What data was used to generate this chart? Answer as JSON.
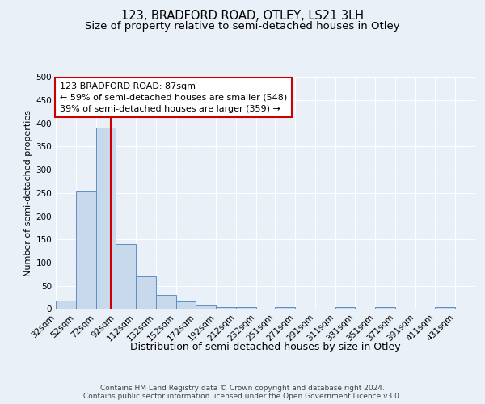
{
  "title": "123, BRADFORD ROAD, OTLEY, LS21 3LH",
  "subtitle": "Size of property relative to semi-detached houses in Otley",
  "xlabel": "Distribution of semi-detached houses by size in Otley",
  "ylabel": "Number of semi-detached properties",
  "footer_line1": "Contains HM Land Registry data © Crown copyright and database right 2024.",
  "footer_line2": "Contains public sector information licensed under the Open Government Licence v3.0.",
  "bar_edges": [
    32,
    52,
    72,
    92,
    112,
    132,
    152,
    172,
    192,
    212,
    232,
    251,
    271,
    291,
    311,
    331,
    351,
    371,
    391,
    411,
    431
  ],
  "bar_heights": [
    18,
    253,
    390,
    140,
    70,
    30,
    16,
    7,
    4,
    4,
    0,
    5,
    0,
    0,
    5,
    0,
    4,
    0,
    0,
    5
  ],
  "tick_labels": [
    "32sqm",
    "52sqm",
    "72sqm",
    "92sqm",
    "112sqm",
    "132sqm",
    "152sqm",
    "172sqm",
    "192sqm",
    "212sqm",
    "232sqm",
    "251sqm",
    "271sqm",
    "291sqm",
    "311sqm",
    "331sqm",
    "351sqm",
    "371sqm",
    "391sqm",
    "411sqm",
    "431sqm"
  ],
  "bar_color": "#c9d9ec",
  "bar_edge_color": "#5b8fc9",
  "vline_x": 87,
  "vline_color": "#cc0000",
  "annotation_text": "123 BRADFORD ROAD: 87sqm\n← 59% of semi-detached houses are smaller (548)\n39% of semi-detached houses are larger (359) →",
  "annotation_box_color": "#ffffff",
  "annotation_box_edge": "#cc0000",
  "ylim": [
    0,
    500
  ],
  "yticks": [
    0,
    50,
    100,
    150,
    200,
    250,
    300,
    350,
    400,
    450,
    500
  ],
  "bg_color": "#eaf0f8",
  "plot_bg_color": "#eaf0f8",
  "grid_color": "#ffffff",
  "title_fontsize": 10.5,
  "subtitle_fontsize": 9.5,
  "xlabel_fontsize": 9,
  "ylabel_fontsize": 8,
  "tick_fontsize": 7.5,
  "footer_fontsize": 6.5,
  "annot_fontsize": 8
}
